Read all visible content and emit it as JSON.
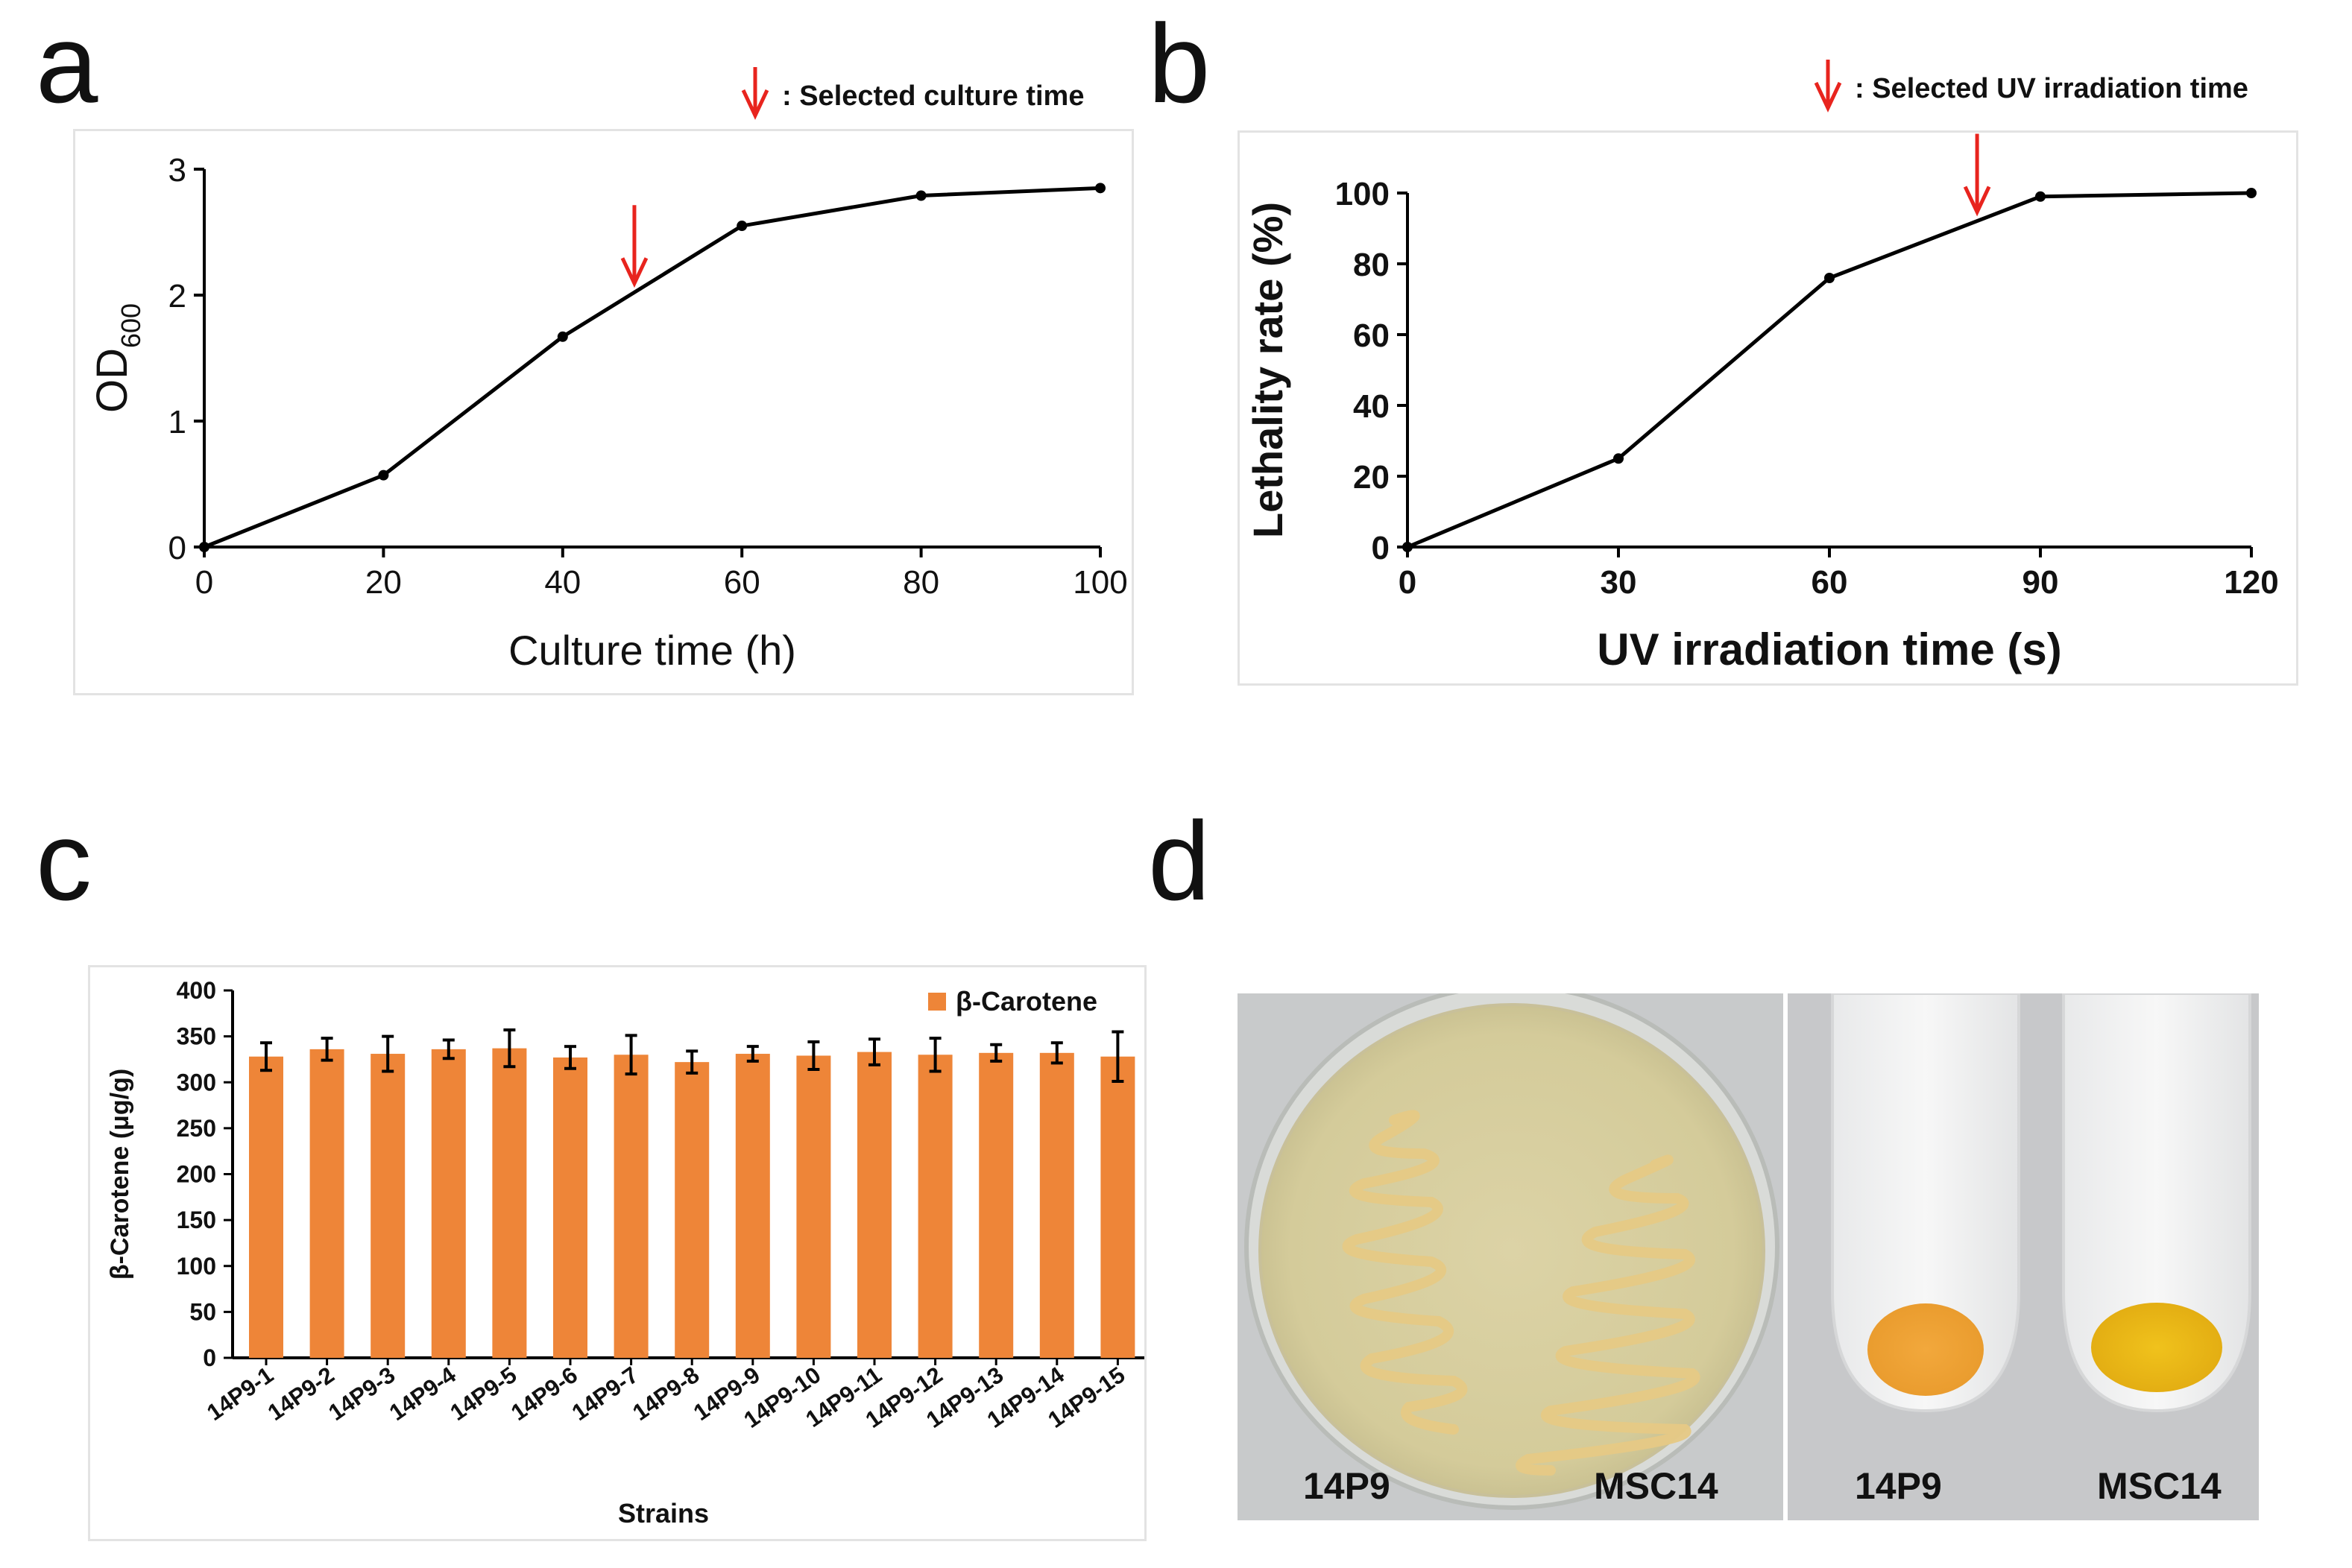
{
  "panels": {
    "a": "a",
    "b": "b",
    "c": "c",
    "d": "d"
  },
  "colors": {
    "line": "#000000",
    "arrow": "#e8241e",
    "bar": "#ee8538",
    "errorbar": "#000000"
  },
  "chart_data": [
    {
      "id": "a",
      "type": "line",
      "title": "",
      "xlabel": "Culture time (h)",
      "ylabel": "OD",
      "ylabel_subscript": "600",
      "x": [
        0,
        20,
        40,
        60,
        80,
        100
      ],
      "y": [
        0,
        0.57,
        1.67,
        2.55,
        2.79,
        2.85
      ],
      "xlim": [
        0,
        100
      ],
      "ylim": [
        0,
        3
      ],
      "xticks": [
        "0",
        "20",
        "40",
        "60",
        "80",
        "100"
      ],
      "yticks": [
        "0",
        "1",
        "2",
        "3"
      ],
      "marker_x": 48,
      "legend": {
        "symbol": "↓",
        "label": ": Selected culture time"
      }
    },
    {
      "id": "b",
      "type": "line",
      "title": "",
      "xlabel": "UV irradiation time (s)",
      "ylabel": "Lethality rate (%)",
      "x": [
        0,
        30,
        60,
        90,
        120
      ],
      "y": [
        0,
        25,
        76,
        99,
        100
      ],
      "xlim": [
        0,
        120
      ],
      "ylim": [
        0,
        100
      ],
      "xticks": [
        "0",
        "30",
        "60",
        "90",
        "120"
      ],
      "yticks": [
        "0",
        "20",
        "40",
        "60",
        "80",
        "100"
      ],
      "marker_x": 81,
      "legend": {
        "symbol": "↓",
        "label": ": Selected UV irradiation time"
      }
    },
    {
      "id": "c",
      "type": "bar",
      "title": "",
      "xlabel": "Strains",
      "ylabel": "β-Carotene (μg/g)",
      "categories": [
        "14P9-1",
        "14P9-2",
        "14P9-3",
        "14P9-4",
        "14P9-5",
        "14P9-6",
        "14P9-7",
        "14P9-8",
        "14P9-9",
        "14P9-10",
        "14P9-11",
        "14P9-12",
        "14P9-13",
        "14P9-14",
        "14P9-15"
      ],
      "series": [
        {
          "name": "β-Carotene",
          "values": [
            328,
            336,
            331,
            336,
            337,
            327,
            330,
            322,
            331,
            329,
            333,
            330,
            332,
            332,
            328
          ],
          "errors": [
            15,
            12,
            19,
            10,
            20,
            12,
            21,
            12,
            8,
            15,
            14,
            18,
            9,
            11,
            27
          ]
        }
      ],
      "ylim": [
        0,
        400
      ],
      "yticks": [
        "0",
        "50",
        "100",
        "150",
        "200",
        "250",
        "300",
        "350",
        "400"
      ],
      "legend_position": "top-right"
    }
  ],
  "photos": {
    "plate": {
      "label_left": "14P9",
      "label_right": "MSC14"
    },
    "tubes": {
      "label_left": "14P9",
      "label_right": "MSC14"
    }
  }
}
